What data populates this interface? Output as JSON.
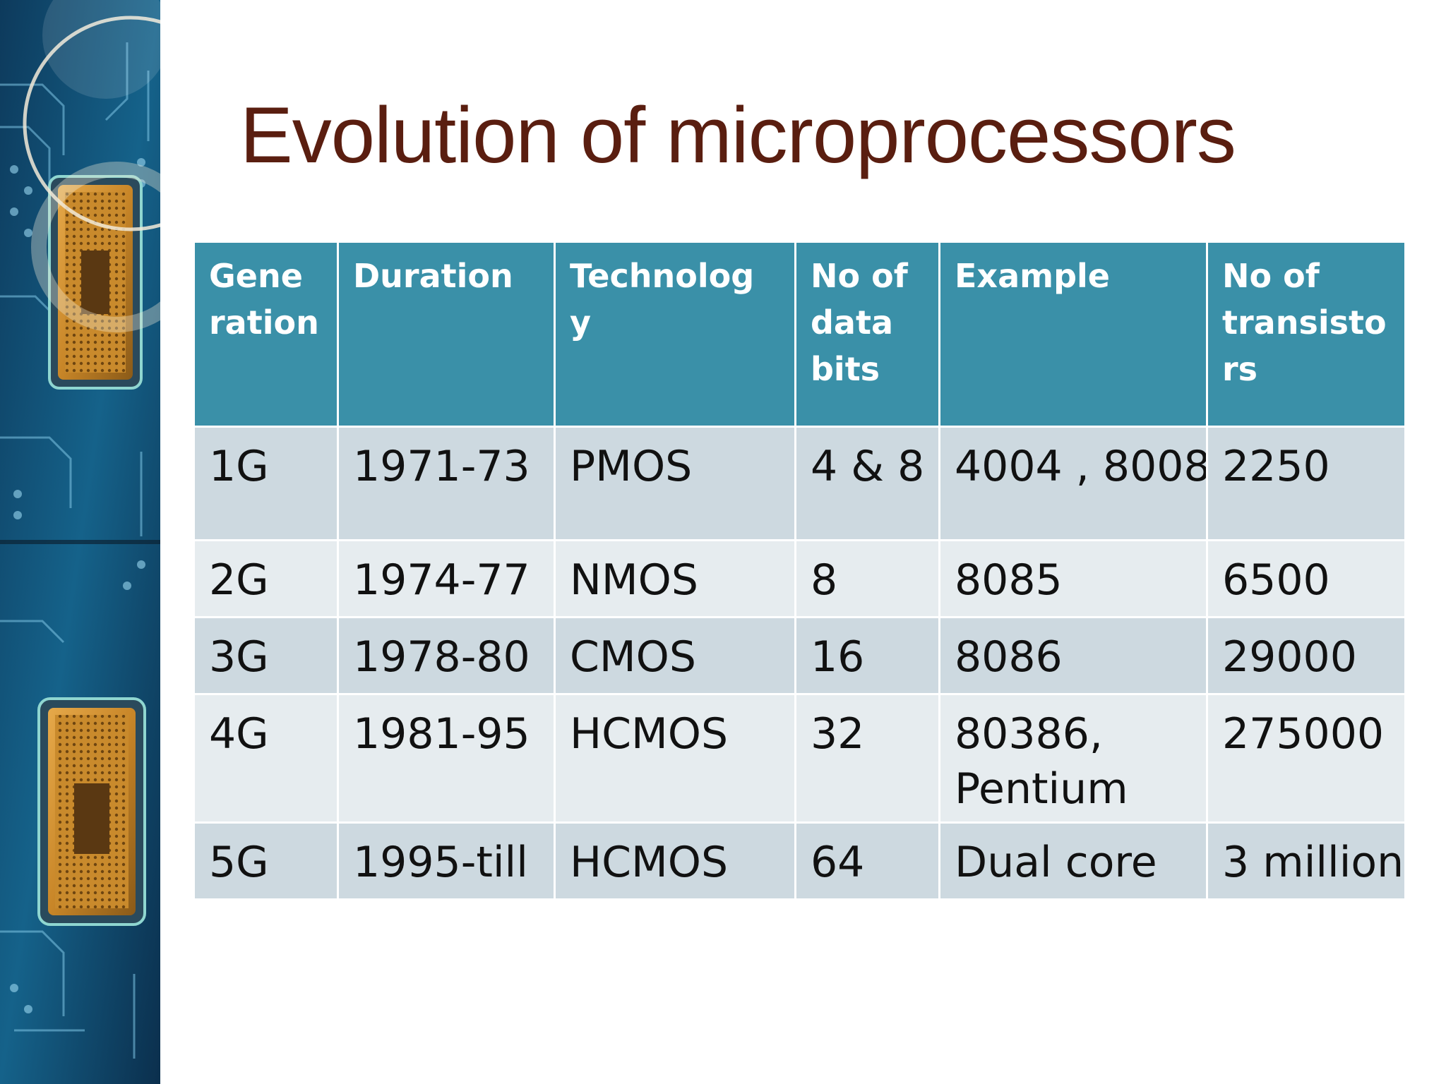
{
  "slide": {
    "title": "Evolution of microprocessors"
  },
  "table": {
    "headers": [
      "Gene\nration",
      "Duration",
      "Technolog\ny",
      "No of\ndata\nbits",
      "Example",
      "No of\ntransisto\nrs"
    ],
    "rows": [
      [
        "1G",
        "1971-73",
        "PMOS",
        "4 & 8",
        "4004 , 8008",
        "2250"
      ],
      [
        "2G",
        "1974-77",
        "NMOS",
        "8",
        "8085",
        "6500"
      ],
      [
        "3G",
        "1978-80",
        "CMOS",
        "16",
        "8086",
        "29000"
      ],
      [
        "4G",
        "1981-95",
        "HCMOS",
        "32",
        "80386,\nPentium",
        "275000"
      ],
      [
        "5G",
        "1995-till",
        "HCMOS",
        "64",
        "Dual core",
        "3 million"
      ]
    ]
  },
  "colors": {
    "title": "#5a1e10",
    "header_bg": "#3a90a8",
    "row_dark": "#cdd9e0",
    "row_light": "#e6ecef"
  },
  "decoration": {
    "image": "circuit-board-cpu-chip-strip"
  }
}
